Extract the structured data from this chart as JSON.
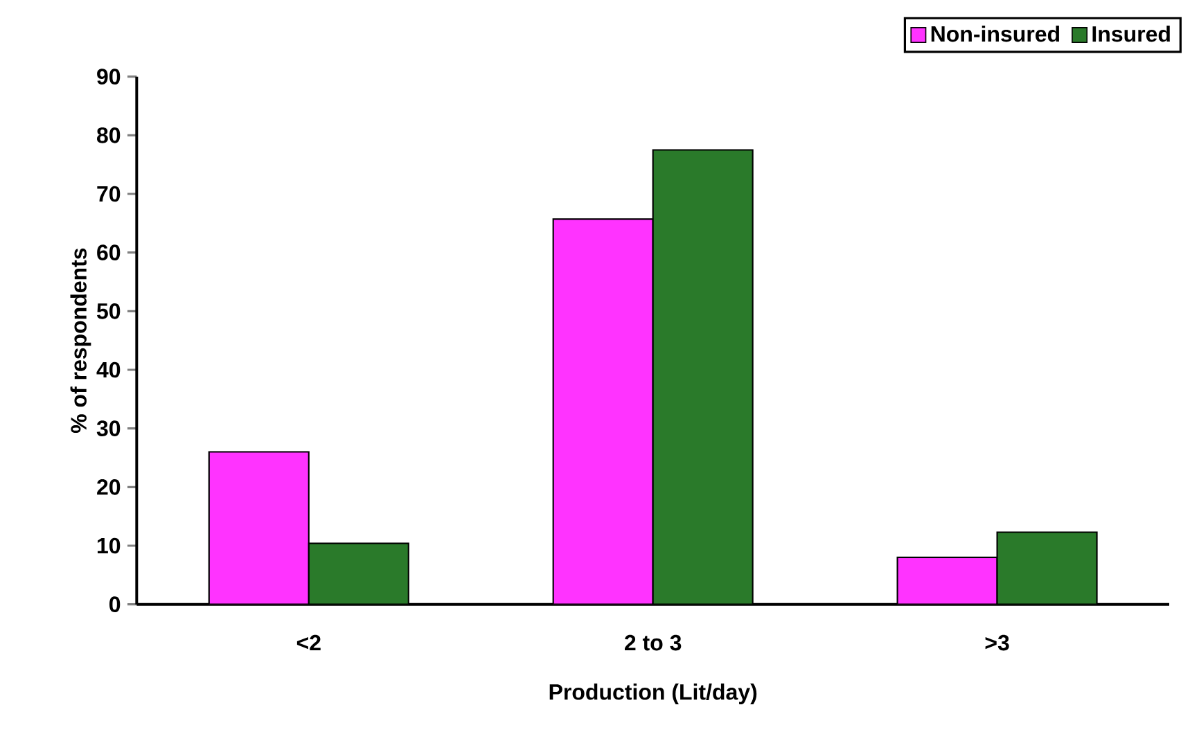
{
  "chart_data": {
    "type": "bar",
    "xlabel": "Production (Lit/day)",
    "ylabel": "% of respondents",
    "categories": [
      "<2",
      "2 to 3",
      ">3"
    ],
    "series": [
      {
        "name": "Non-insured",
        "color": "#ff33ff",
        "values": [
          26.0,
          65.7,
          8.0
        ]
      },
      {
        "name": "Insured",
        "color": "#2a7a2a",
        "values": [
          10.4,
          77.5,
          12.3
        ]
      }
    ],
    "ylim": [
      0,
      90
    ],
    "yticks": [
      0,
      10,
      20,
      30,
      40,
      50,
      60,
      70,
      80,
      90
    ],
    "grid": false,
    "legend": "top right"
  }
}
